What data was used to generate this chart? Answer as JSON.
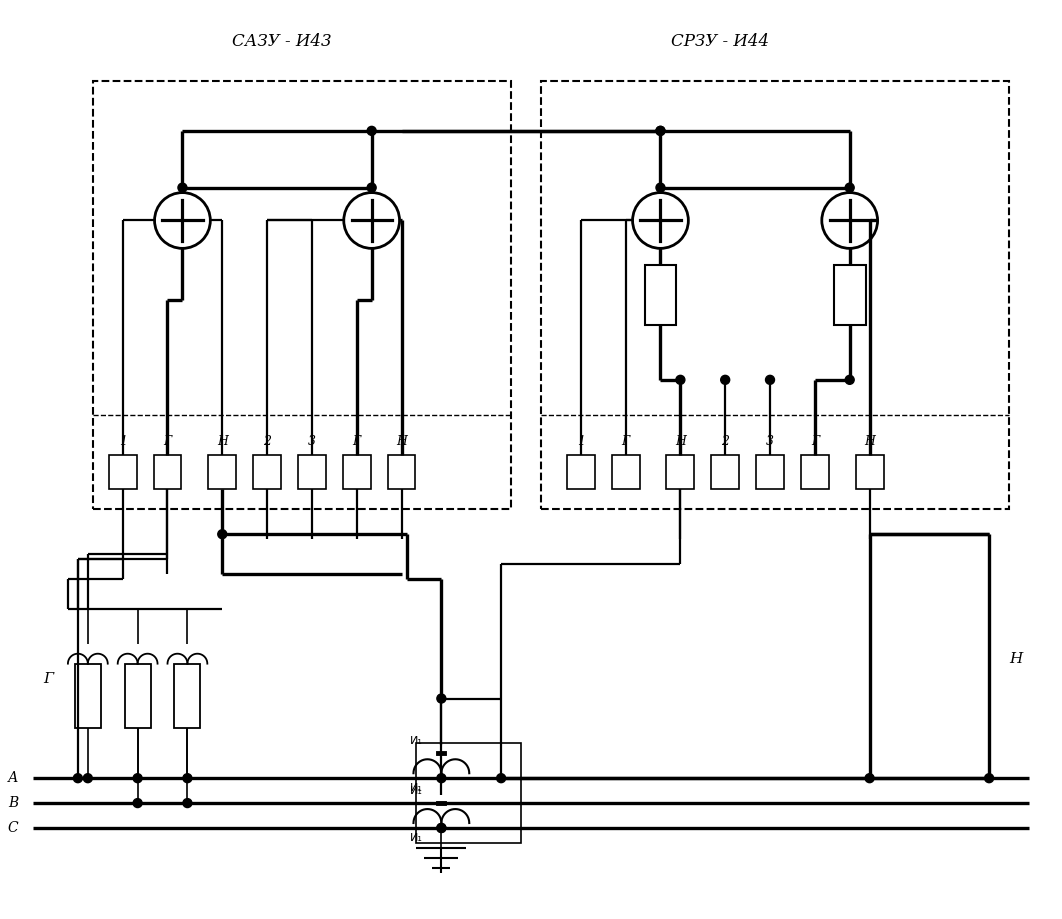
{
  "bg_color": "#ffffff",
  "figsize": [
    10.62,
    9.19
  ],
  "dpi": 100,
  "title_left": "САЗУ - И43",
  "title_right": "СРЗУ - И44",
  "label_G": "Г",
  "label_H": "Н",
  "label_A": "А",
  "label_B": "В",
  "label_C": "С",
  "sazu_terms": [
    "1",
    "Г",
    "Н",
    "2",
    "3",
    "Г",
    "Н"
  ],
  "srzu_terms": [
    "1",
    "Г",
    "Н",
    "2",
    "3",
    "Г",
    "Н"
  ],
  "xlim": [
    0,
    106
  ],
  "ylim": [
    0,
    92
  ]
}
